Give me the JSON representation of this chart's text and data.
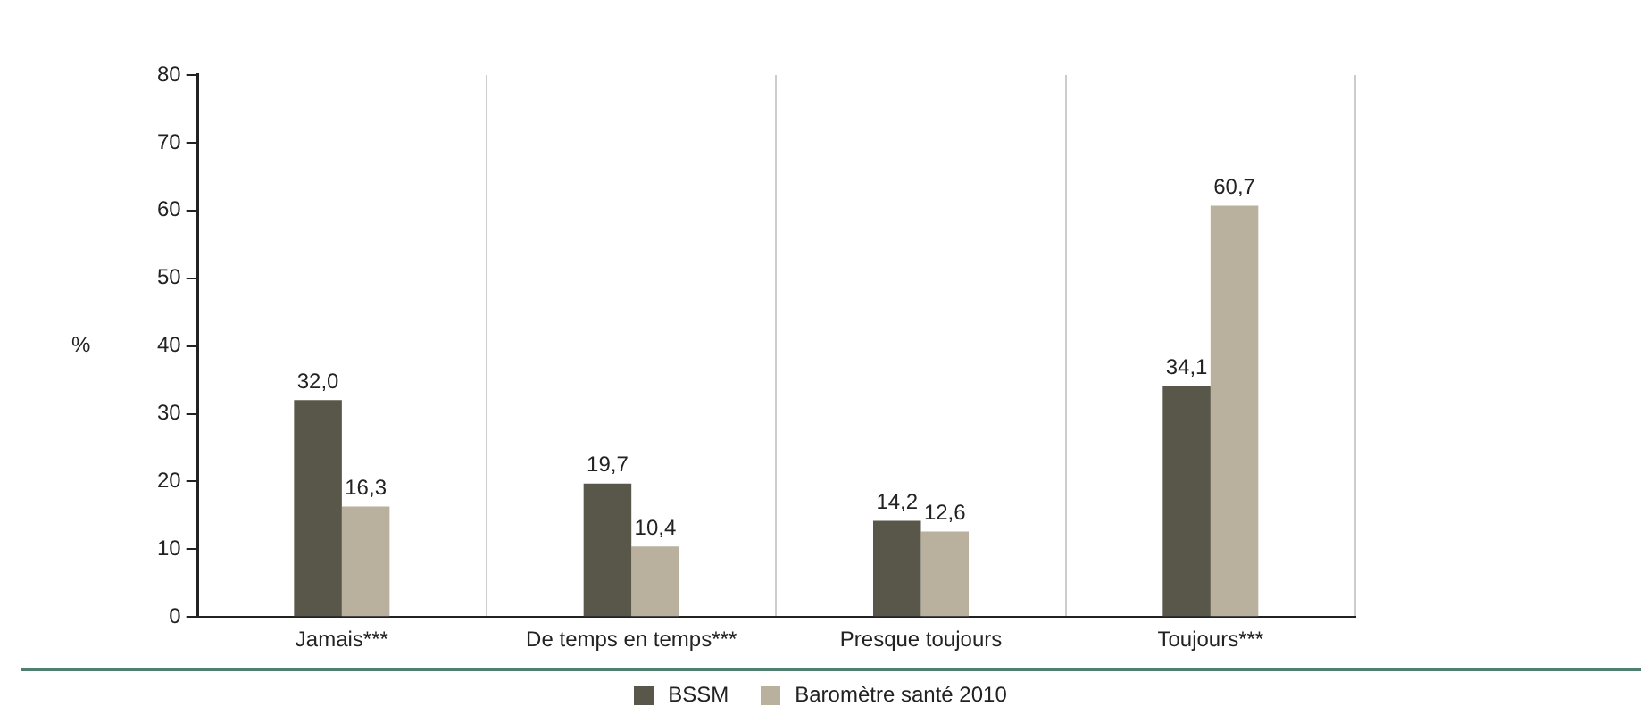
{
  "chart_data": {
    "type": "bar",
    "ylabel": "%",
    "categories": [
      "Jamais***",
      "De temps en temps***",
      "Presque toujours",
      "Toujours***"
    ],
    "series": [
      {
        "name": "BSSM",
        "color": "#58574a",
        "values": [
          32.0,
          19.7,
          14.2,
          34.1
        ],
        "value_labels": [
          "32,0",
          "19,7",
          "14,2",
          "34,1"
        ]
      },
      {
        "name": "Baromètre santé 2010",
        "color": "#b9b09e",
        "values": [
          16.3,
          10.4,
          12.6,
          60.7
        ],
        "value_labels": [
          "16,3",
          "10,4",
          "12,6",
          "60,7"
        ]
      }
    ],
    "ylim": [
      0,
      80
    ],
    "yticks": [
      0,
      10,
      20,
      30,
      40,
      50,
      60,
      70,
      80
    ],
    "grid": "x",
    "legend": "bottom"
  }
}
